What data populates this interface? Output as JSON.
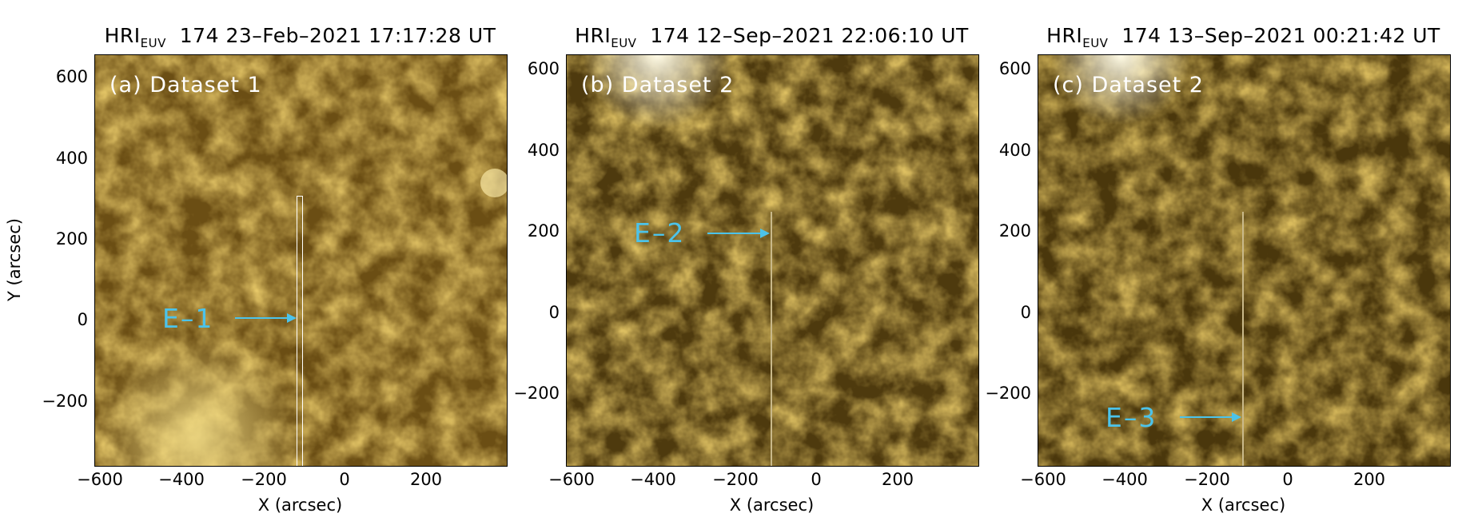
{
  "panels": [
    {
      "title_prefix": "HRI",
      "title_sub": "EUV",
      "title_rest": "174  23–Feb–2021  17:17:28  UT",
      "label": "(a)  Dataset  1",
      "event": "E–1",
      "slit_color": "#ffffff"
    },
    {
      "title_prefix": "HRI",
      "title_sub": "EUV",
      "title_rest": "174  12–Sep–2021  22:06:10  UT",
      "label": "(b)  Dataset  2",
      "event": "E–2",
      "slit_color": "#c9b98a"
    },
    {
      "title_prefix": "HRI",
      "title_sub": "EUV",
      "title_rest": "174  13–Sep–2021  00:21:42  UT",
      "label": "(c)  Dataset  2",
      "event": "E–3",
      "slit_color": "#c9b98a"
    }
  ],
  "x_ticks": [
    "−600",
    "−400",
    "−200",
    "0",
    "200"
  ],
  "y_ticks": [
    "600",
    "400",
    "200",
    "0",
    "−200"
  ],
  "x_axis_title": "X (arcsec)",
  "y_axis_title": "Y (arcsec)",
  "event_color": "#4cc3ea"
}
